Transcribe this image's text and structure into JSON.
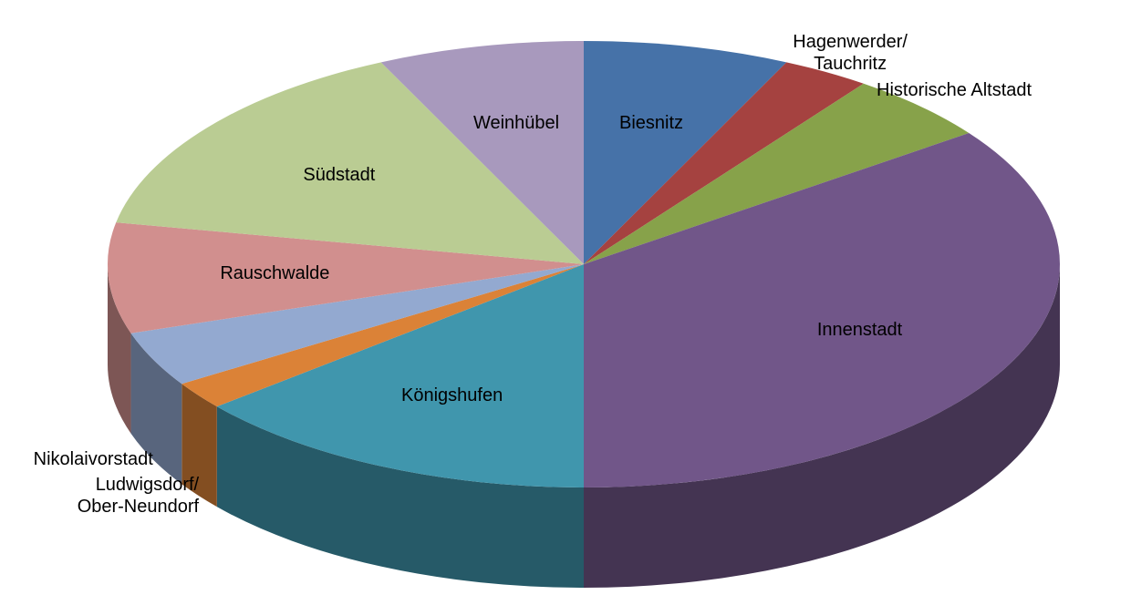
{
  "chart_data": {
    "type": "pie3d",
    "categories": [
      "Biesnitz",
      "Hagenwerder/\nTauchritz",
      "Historische Altstadt",
      "Innenstadt",
      "Königshufen",
      "Ludwigsdorf/\nOber-Neundorf",
      "Nikolaivorstadt",
      "Rauschwalde",
      "Südstadt",
      "Weinhübel"
    ],
    "values": [
      7,
      3,
      5,
      35,
      14,
      2,
      4,
      8,
      15,
      7
    ],
    "colors": [
      "#4672a8",
      "#a54240",
      "#87a24a",
      "#715689",
      "#4096ad",
      "#db8237",
      "#93a9d0",
      "#d18f8e",
      "#bacc93",
      "#a899bd"
    ]
  }
}
